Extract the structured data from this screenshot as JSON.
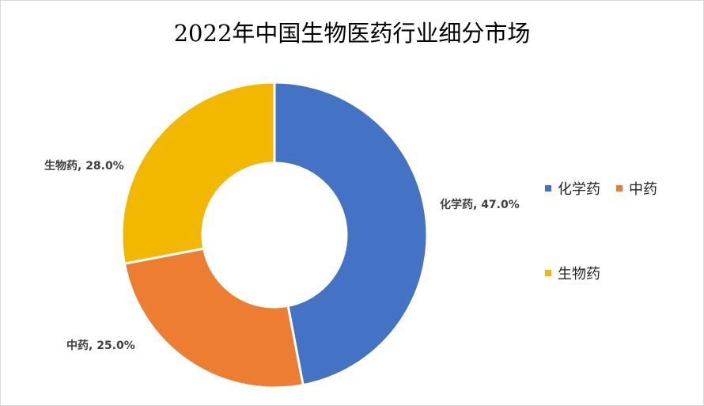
{
  "chart_data": {
    "type": "pie",
    "variant": "donut",
    "title": "2022年中国生物医药行业细分市场",
    "categories": [
      "化学药",
      "中药",
      "生物药"
    ],
    "values": [
      47.0,
      25.0,
      28.0
    ],
    "unit": "%",
    "data_labels": [
      "化学药, 47.0%",
      "中药, 25.0%",
      "生物药, 28.0%"
    ],
    "colors": [
      "#4472C4",
      "#ED7D31",
      "#F2B800"
    ],
    "start_angle": "12 o'clock",
    "direction": "clockwise",
    "legend": {
      "placement": "right",
      "items": [
        "化学药",
        "中药",
        "生物药"
      ]
    }
  }
}
